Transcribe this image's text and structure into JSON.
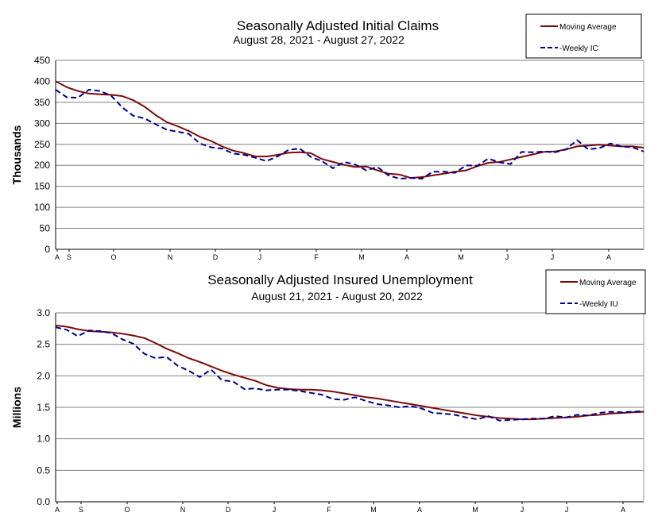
{
  "colors": {
    "moving_average": "#7a0a0a",
    "weekly": "#00008b",
    "grid": "#808080"
  },
  "chart_data": [
    {
      "type": "line",
      "title": "Seasonally Adjusted Initial Claims",
      "subtitle": "August 28, 2021 - August 27, 2022",
      "ylabel": "Thousands",
      "xlabel": "",
      "ylim": [
        0,
        450
      ],
      "yticks": [
        "450",
        "400",
        "350",
        "300",
        "250",
        "200",
        "150",
        "100",
        "50",
        "0"
      ],
      "month_labels": [
        "A",
        "S",
        "O",
        "N",
        "D",
        "J",
        "F",
        "M",
        "A",
        "M",
        "J",
        "J",
        "A"
      ],
      "legend": [
        "Moving Average",
        "-Weekly IC"
      ],
      "series": [
        {
          "name": "Moving Average",
          "style": "solid",
          "values": [
            400,
            386,
            377,
            371,
            369,
            368,
            365,
            355,
            340,
            320,
            303,
            293,
            282,
            268,
            258,
            245,
            235,
            229,
            221,
            221,
            225,
            230,
            231,
            229,
            215,
            208,
            201,
            196,
            197,
            188,
            180,
            178,
            170,
            172,
            176,
            180,
            185,
            188,
            198,
            206,
            208,
            214,
            220,
            226,
            232,
            233,
            238,
            245,
            247,
            249,
            247,
            245,
            245,
            242
          ]
        },
        {
          "name": "-Weekly IC",
          "style": "dashed",
          "values": [
            380,
            362,
            361,
            380,
            377,
            366,
            338,
            318,
            312,
            298,
            285,
            280,
            275,
            252,
            243,
            240,
            228,
            225,
            218,
            210,
            221,
            237,
            240,
            220,
            210,
            193,
            208,
            202,
            188,
            196,
            176,
            168,
            170,
            168,
            185,
            185,
            182,
            200,
            199,
            216,
            207,
            203,
            232,
            231,
            233,
            231,
            238,
            260,
            238,
            241,
            252,
            245,
            243,
            233
          ]
        }
      ]
    },
    {
      "type": "line",
      "title": "Seasonally Adjusted Insured Unemployment",
      "subtitle": "August 21, 2021 - August 20, 2022",
      "ylabel": "Millions",
      "xlabel": "",
      "ylim": [
        0.0,
        3.0
      ],
      "yticks": [
        "3.0",
        "2.5",
        "2.0",
        "1.5",
        "1.0",
        "0.5",
        "0.0"
      ],
      "month_labels": [
        "A",
        "S",
        "O",
        "N",
        "D",
        "J",
        "F",
        "M",
        "A",
        "M",
        "J",
        "J",
        "A"
      ],
      "legend": [
        "Moving Average",
        "-Weekly IU"
      ],
      "series": [
        {
          "name": "Moving Average",
          "style": "solid",
          "values": [
            2.8,
            2.78,
            2.74,
            2.71,
            2.7,
            2.69,
            2.67,
            2.64,
            2.6,
            2.52,
            2.43,
            2.36,
            2.28,
            2.22,
            2.15,
            2.08,
            2.02,
            1.97,
            1.92,
            1.85,
            1.81,
            1.79,
            1.78,
            1.78,
            1.77,
            1.75,
            1.72,
            1.69,
            1.66,
            1.64,
            1.61,
            1.58,
            1.55,
            1.52,
            1.49,
            1.46,
            1.43,
            1.4,
            1.37,
            1.35,
            1.33,
            1.32,
            1.31,
            1.31,
            1.32,
            1.33,
            1.34,
            1.35,
            1.37,
            1.38,
            1.4,
            1.41,
            1.42,
            1.43
          ]
        },
        {
          "name": "-Weekly IU",
          "style": "dashed",
          "values": [
            2.77,
            2.73,
            2.63,
            2.72,
            2.71,
            2.68,
            2.58,
            2.51,
            2.35,
            2.28,
            2.3,
            2.16,
            2.08,
            1.98,
            2.1,
            1.93,
            1.91,
            1.79,
            1.8,
            1.77,
            1.78,
            1.78,
            1.76,
            1.73,
            1.7,
            1.63,
            1.62,
            1.66,
            1.6,
            1.55,
            1.53,
            1.5,
            1.52,
            1.48,
            1.41,
            1.4,
            1.38,
            1.34,
            1.31,
            1.36,
            1.29,
            1.3,
            1.31,
            1.32,
            1.32,
            1.36,
            1.34,
            1.38,
            1.37,
            1.41,
            1.43,
            1.42,
            1.43,
            1.44
          ]
        }
      ]
    }
  ]
}
